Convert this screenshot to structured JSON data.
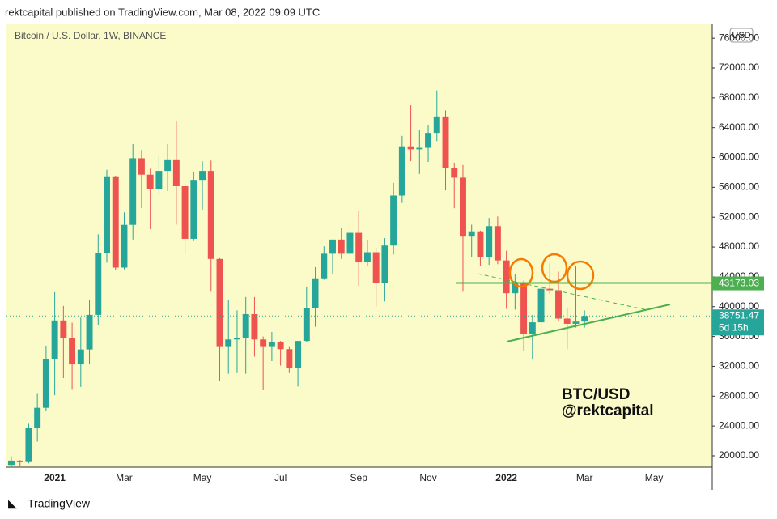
{
  "header": "rektcapital published on TradingView.com, Mar 08, 2022 09:09 UTC",
  "footer": "TradingView",
  "chart_data": {
    "type": "candlestick",
    "title": "Bitcoin / U.S. Dollar, 1W, BINANCE",
    "currency": "USD",
    "annotation": [
      "BTC/USD",
      "@rektcapital"
    ],
    "countdown": "5d 15h",
    "categories": [
      null,
      null,
      null,
      null,
      null,
      "2021",
      null,
      null,
      null,
      null,
      null,
      null,
      null,
      "Mar",
      null,
      null,
      null,
      null,
      null,
      null,
      null,
      null,
      "May",
      null,
      null,
      null,
      null,
      null,
      null,
      null,
      null,
      "Jul",
      null,
      null,
      null,
      null,
      null,
      null,
      null,
      null,
      "Sep",
      null,
      null,
      null,
      null,
      null,
      null,
      null,
      "Nov",
      null,
      null,
      null,
      null,
      null,
      null,
      null,
      null,
      "2022",
      null,
      null,
      null,
      null,
      null,
      null,
      null,
      null,
      "Mar",
      null,
      null,
      null,
      null,
      null,
      null,
      null,
      "May",
      null,
      null,
      null,
      null,
      null,
      null
    ],
    "series": [
      {
        "name": "Bitcoin / U.S. Dollar",
        "up_color": "#26a69a",
        "down_color": "#ef5350",
        "open": [
          18780,
          19360,
          19270,
          23740,
          26440,
          33000,
          38150,
          35830,
          32260,
          34260,
          38900,
          47170,
          57480,
          45240,
          50970,
          59900,
          57700,
          55800,
          58200,
          59750,
          56150,
          49100,
          57000,
          58200,
          46400,
          34700,
          35600,
          35800,
          39000,
          35600,
          34700,
          35300,
          34300,
          31800,
          35400,
          39850,
          43800,
          47100,
          49000,
          47100,
          49900,
          46000,
          47300,
          43200,
          48200,
          54900,
          61500,
          61100,
          61300,
          63300,
          65500,
          58600,
          57300,
          49400,
          50100,
          46700,
          50800,
          46200,
          41800,
          43100,
          36300,
          37900,
          42400,
          42200,
          38400,
          37700,
          38000,
          null,
          null,
          null,
          null,
          null,
          null,
          null,
          null,
          null,
          null,
          null,
          null,
          null,
          null
        ],
        "high": [
          19920,
          19420,
          24300,
          28420,
          34780,
          41950,
          40100,
          37850,
          38530,
          40950,
          49700,
          58350,
          57560,
          52640,
          61800,
          61000,
          58500,
          60200,
          61800,
          64850,
          56500,
          58000,
          59500,
          59600,
          46500,
          40900,
          39500,
          41300,
          41300,
          36000,
          36600,
          35400,
          34700,
          35400,
          42600,
          45300,
          48100,
          49000,
          50500,
          51000,
          52900,
          48900,
          47900,
          49200,
          56600,
          62900,
          67000,
          63700,
          64300,
          69000,
          66300,
          59300,
          59000,
          51000,
          50200,
          51900,
          52100,
          47500,
          44400,
          43500,
          38900,
          44500,
          45800,
          44700,
          39800,
          45400,
          39500,
          null,
          null,
          null,
          null,
          null,
          null,
          null,
          null,
          null,
          null,
          null,
          null,
          null,
          null
        ],
        "low": [
          18180,
          17650,
          19000,
          21900,
          26000,
          28130,
          30420,
          28850,
          29240,
          32300,
          37500,
          45900,
          44900,
          45000,
          49000,
          53200,
          50400,
          55000,
          55500,
          51000,
          47000,
          48800,
          53000,
          42000,
          30000,
          31000,
          31100,
          31000,
          33300,
          28800,
          32700,
          32100,
          31100,
          29300,
          35300,
          37300,
          43600,
          44400,
          46400,
          46500,
          42800,
          45500,
          40000,
          40700,
          47000,
          53900,
          59500,
          57800,
          59400,
          62200,
          55600,
          53200,
          42000,
          46700,
          45500,
          45600,
          45700,
          39700,
          39600,
          34000,
          32900,
          36300,
          41700,
          38000,
          34300,
          37200,
          37200,
          null,
          null,
          null,
          null,
          null,
          null,
          null,
          null,
          null,
          null,
          null,
          null,
          null,
          null
        ],
        "close": [
          19360,
          19270,
          23740,
          26440,
          33000,
          38150,
          35830,
          32260,
          34260,
          38900,
          47170,
          57480,
          45240,
          50970,
          59900,
          57700,
          55800,
          58200,
          59750,
          56150,
          49100,
          57000,
          58200,
          46400,
          34700,
          35600,
          35800,
          39000,
          35600,
          34700,
          35300,
          34300,
          31800,
          35400,
          39850,
          43800,
          47100,
          49000,
          47100,
          49900,
          46000,
          47300,
          43200,
          48200,
          54900,
          61500,
          61100,
          61300,
          63300,
          65500,
          58600,
          57300,
          49400,
          50100,
          46700,
          50800,
          46200,
          41800,
          43100,
          36300,
          37900,
          42400,
          42200,
          38400,
          37700,
          38000,
          38751.47,
          null,
          null,
          null,
          null,
          null,
          null,
          null,
          null,
          null,
          null,
          null,
          null,
          null,
          null
        ]
      }
    ],
    "price_lines": [
      {
        "value": 43173.03,
        "color": "#4caf50"
      }
    ],
    "ylim": [
      18480,
      77860
    ],
    "yticks": [
      {
        "value": 20000,
        "label": "20000.00"
      },
      {
        "value": 24000,
        "label": "24000.00"
      },
      {
        "value": 28000,
        "label": "28000.00"
      },
      {
        "value": 32000,
        "label": "32000.00"
      },
      {
        "value": 36000,
        "label": "36000.00"
      },
      {
        "value": 40000,
        "label": "40000.00"
      },
      {
        "value": 44000,
        "label": "44000.00"
      },
      {
        "value": 48000,
        "label": "48000.00"
      },
      {
        "value": 52000,
        "label": "52000.00"
      },
      {
        "value": 56000,
        "label": "56000.00"
      },
      {
        "value": 60000,
        "label": "60000.00"
      },
      {
        "value": 64000,
        "label": "64000.00"
      },
      {
        "value": 68000,
        "label": "68000.00"
      },
      {
        "value": 72000,
        "label": "72000.00"
      },
      {
        "value": 76000,
        "label": "76000.00"
      }
    ],
    "background": "#fbfbc9"
  }
}
